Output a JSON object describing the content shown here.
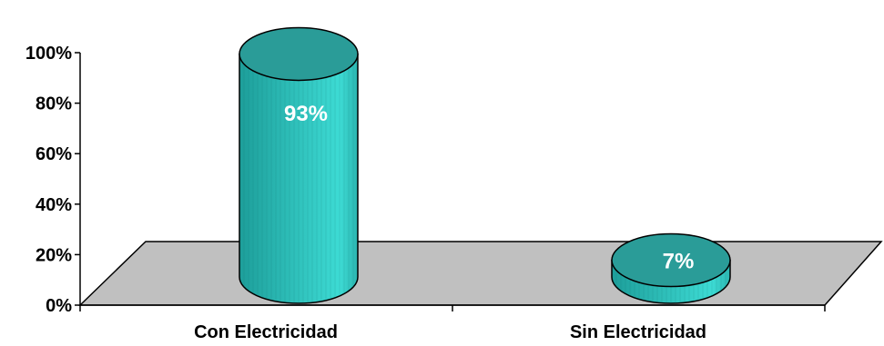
{
  "chart_data": {
    "type": "bar",
    "style": "3d-cylinder",
    "categories": [
      "Con Electricidad",
      "Sin Electricidad"
    ],
    "values": [
      93,
      7
    ],
    "data_labels": [
      "93%",
      "7%"
    ],
    "y_ticks": [
      "0%",
      "20%",
      "40%",
      "60%",
      "80%",
      "100%"
    ],
    "ylim": [
      0,
      100
    ],
    "grid": false,
    "legend": "none",
    "title": "",
    "xlabel": "",
    "ylabel": ""
  },
  "colors": {
    "bar": "#2fbdb8",
    "bar_highlight": "#3fd6d0",
    "bar_top": "#2a9c98",
    "bar_outline": "#000000",
    "floor": "#c0c0c0",
    "floor_outline": "#000000",
    "axis": "#000000"
  }
}
